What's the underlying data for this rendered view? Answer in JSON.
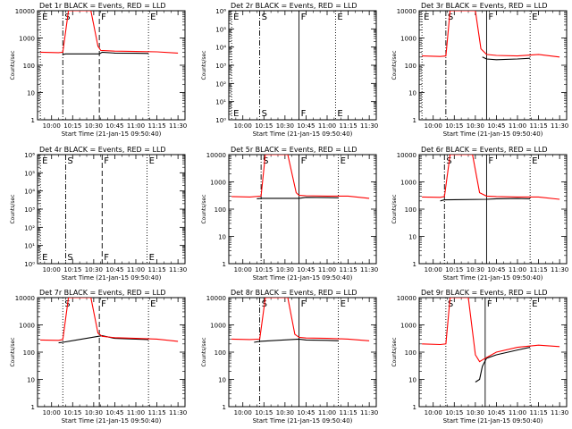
{
  "figure": {
    "xlabel": "Start Time (21-Jan-15 09:50:40)",
    "ylabel": "Counts/sec",
    "xticks": [
      "10:00",
      "10:15",
      "10:30",
      "10:45",
      "11:00",
      "11:15",
      "11:30"
    ]
  },
  "chart_data": [
    {
      "type": "line",
      "title": "Det 1r BLACK = Events, RED = LLD",
      "scale": "log",
      "ylim": [
        1,
        10000
      ],
      "yticklabels": [
        "1",
        "10",
        "100",
        "1000",
        "10000"
      ],
      "markers": [
        {
          "label": "E",
          "t": "09:52",
          "style": "dotted"
        },
        {
          "label": "S",
          "t": "10:08",
          "style": "dashdot"
        },
        {
          "label": "F",
          "t": "10:34",
          "style": "dashed"
        },
        {
          "label": "E",
          "t": "11:09",
          "style": "dotted"
        }
      ],
      "series": [
        {
          "name": "Events",
          "color": "#000000",
          "points": [
            [
              "10:08",
              250
            ],
            [
              "10:10",
              260
            ],
            [
              "10:34",
              260
            ],
            [
              "10:36",
              300
            ],
            [
              "10:45",
              280
            ],
            [
              "11:00",
              275
            ],
            [
              "11:09",
              270
            ]
          ]
        },
        {
          "name": "LLD",
          "color": "#ff0000",
          "points": [
            [
              "09:52",
              300
            ],
            [
              "10:05",
              290
            ],
            [
              "10:08",
              300
            ],
            [
              "10:12",
              10000
            ],
            [
              "10:28",
              10000
            ],
            [
              "10:33",
              500
            ],
            [
              "10:35",
              350
            ],
            [
              "10:45",
              330
            ],
            [
              "11:00",
              320
            ],
            [
              "11:15",
              310
            ],
            [
              "11:30",
              280
            ]
          ]
        }
      ]
    },
    {
      "type": "line",
      "title": "Det 2r BLACK = Events, RED = LLD",
      "scale": "log",
      "ylim": [
        1,
        1000000
      ],
      "yticklabels": [
        "10⁰",
        "10¹",
        "10²",
        "10³",
        "10⁴",
        "10⁵",
        "10⁶"
      ],
      "markers": [
        {
          "label": "E",
          "t": "09:52",
          "style": "dotted"
        },
        {
          "label": "S",
          "t": "10:12",
          "style": "dashdot"
        },
        {
          "label": "F",
          "t": "10:40",
          "style": "solid"
        },
        {
          "label": "E",
          "t": "11:06",
          "style": "dotted"
        }
      ],
      "series": []
    },
    {
      "type": "line",
      "title": "Det 3r BLACK = Events, RED = LLD",
      "scale": "log",
      "ylim": [
        1,
        10000
      ],
      "yticklabels": [
        "1",
        "10",
        "100",
        "1000",
        "10000"
      ],
      "markers": [
        {
          "label": "E",
          "t": "09:52",
          "style": "dotted"
        },
        {
          "label": "S",
          "t": "10:09",
          "style": "dashdot"
        },
        {
          "label": "F",
          "t": "10:38",
          "style": "solid"
        },
        {
          "label": "E",
          "t": "11:09",
          "style": "dotted"
        }
      ],
      "series": [
        {
          "name": "Events",
          "color": "#000000",
          "points": [
            [
              "10:35",
              200
            ],
            [
              "10:38",
              170
            ],
            [
              "10:45",
              160
            ],
            [
              "11:00",
              170
            ],
            [
              "11:09",
              180
            ]
          ]
        },
        {
          "name": "LLD",
          "color": "#ff0000",
          "points": [
            [
              "09:52",
              220
            ],
            [
              "10:05",
              210
            ],
            [
              "10:09",
              220
            ],
            [
              "10:12",
              10000
            ],
            [
              "10:30",
              10000
            ],
            [
              "10:34",
              400
            ],
            [
              "10:38",
              250
            ],
            [
              "10:45",
              230
            ],
            [
              "11:00",
              220
            ],
            [
              "11:15",
              250
            ],
            [
              "11:30",
              200
            ]
          ]
        }
      ]
    },
    {
      "type": "line",
      "title": "Det 4r BLACK = Events, RED = LLD",
      "scale": "log",
      "ylim": [
        1,
        1000000
      ],
      "yticklabels": [
        "10⁰",
        "10¹",
        "10²",
        "10³",
        "10⁴",
        "10⁵",
        "10⁶"
      ],
      "markers": [
        {
          "label": "E",
          "t": "09:52",
          "style": "dotted"
        },
        {
          "label": "S",
          "t": "10:10",
          "style": "dashdot"
        },
        {
          "label": "F",
          "t": "10:36",
          "style": "dashed"
        },
        {
          "label": "E",
          "t": "11:08",
          "style": "dotted"
        }
      ],
      "series": []
    },
    {
      "type": "line",
      "title": "Det 5r BLACK = Events, RED = LLD",
      "scale": "log",
      "ylim": [
        1,
        10000
      ],
      "yticklabels": [
        "1",
        "10",
        "100",
        "1000",
        "10000"
      ],
      "markers": [
        {
          "label": "S",
          "t": "10:13",
          "style": "dashdot"
        },
        {
          "label": "F",
          "t": "10:40",
          "style": "solid"
        },
        {
          "label": "E",
          "t": "11:08",
          "style": "dotted"
        }
      ],
      "series": [
        {
          "name": "Events",
          "color": "#000000",
          "points": [
            [
              "10:10",
              240
            ],
            [
              "10:13",
              250
            ],
            [
              "10:40",
              250
            ],
            [
              "10:45",
              270
            ],
            [
              "11:00",
              265
            ],
            [
              "11:08",
              260
            ]
          ]
        },
        {
          "name": "LLD",
          "color": "#ff0000",
          "points": [
            [
              "09:52",
              290
            ],
            [
              "10:05",
              280
            ],
            [
              "10:13",
              300
            ],
            [
              "10:16",
              10000
            ],
            [
              "10:32",
              10000
            ],
            [
              "10:38",
              400
            ],
            [
              "10:40",
              320
            ],
            [
              "10:45",
              310
            ],
            [
              "11:00",
              300
            ],
            [
              "11:15",
              300
            ],
            [
              "11:30",
              250
            ]
          ]
        }
      ]
    },
    {
      "type": "line",
      "title": "Det 6r BLACK = Events, RED = LLD",
      "scale": "log",
      "ylim": [
        1,
        10000
      ],
      "yticklabels": [
        "1",
        "10",
        "100",
        "1000",
        "10000"
      ],
      "markers": [
        {
          "label": "S",
          "t": "10:08",
          "style": "dashdot"
        },
        {
          "label": "F",
          "t": "10:38",
          "style": "solid"
        },
        {
          "label": "E",
          "t": "11:09",
          "style": "dotted"
        }
      ],
      "series": [
        {
          "name": "Events",
          "color": "#000000",
          "points": [
            [
              "10:05",
              200
            ],
            [
              "10:08",
              220
            ],
            [
              "10:38",
              230
            ],
            [
              "10:45",
              240
            ],
            [
              "11:00",
              245
            ],
            [
              "11:09",
              240
            ]
          ]
        },
        {
          "name": "LLD",
          "color": "#ff0000",
          "points": [
            [
              "09:52",
              280
            ],
            [
              "10:05",
              270
            ],
            [
              "10:08",
              290
            ],
            [
              "10:12",
              10000
            ],
            [
              "10:28",
              10000
            ],
            [
              "10:33",
              400
            ],
            [
              "10:38",
              300
            ],
            [
              "10:45",
              290
            ],
            [
              "11:00",
              280
            ],
            [
              "11:15",
              280
            ],
            [
              "11:30",
              230
            ]
          ]
        }
      ]
    },
    {
      "type": "line",
      "title": "Det 7r BLACK = Events, RED = LLD",
      "scale": "log",
      "ylim": [
        1,
        10000
      ],
      "yticklabels": [
        "1",
        "10",
        "100",
        "1000",
        "10000"
      ],
      "markers": [
        {
          "label": "S",
          "t": "10:08",
          "style": "dotted"
        },
        {
          "label": "F",
          "t": "10:34",
          "style": "dashed"
        },
        {
          "label": "E",
          "t": "11:09",
          "style": "dotted"
        }
      ],
      "series": [
        {
          "name": "Events",
          "color": "#000000",
          "points": [
            [
              "10:05",
              220
            ],
            [
              "10:08",
              230
            ],
            [
              "10:36",
              400
            ],
            [
              "10:45",
              320
            ],
            [
              "11:00",
              300
            ],
            [
              "11:09",
              290
            ]
          ]
        },
        {
          "name": "LLD",
          "color": "#ff0000",
          "points": [
            [
              "09:52",
              280
            ],
            [
              "10:05",
              270
            ],
            [
              "10:08",
              290
            ],
            [
              "10:12",
              10000
            ],
            [
              "10:28",
              10000
            ],
            [
              "10:33",
              500
            ],
            [
              "10:36",
              380
            ],
            [
              "10:45",
              340
            ],
            [
              "11:00",
              320
            ],
            [
              "11:15",
              300
            ],
            [
              "11:30",
              250
            ]
          ]
        }
      ]
    },
    {
      "type": "line",
      "title": "Det 8r BLACK = Events, RED = LLD",
      "scale": "log",
      "ylim": [
        1,
        10000
      ],
      "yticklabels": [
        "1",
        "10",
        "100",
        "1000",
        "10000"
      ],
      "markers": [
        {
          "label": "S",
          "t": "10:12",
          "style": "dashdot"
        },
        {
          "label": "F",
          "t": "10:40",
          "style": "solid"
        },
        {
          "label": "E",
          "t": "11:08",
          "style": "dotted"
        }
      ],
      "series": [
        {
          "name": "Events",
          "color": "#000000",
          "points": [
            [
              "10:08",
              230
            ],
            [
              "10:12",
              250
            ],
            [
              "10:40",
              300
            ],
            [
              "10:45",
              280
            ],
            [
              "11:00",
              270
            ],
            [
              "11:08",
              260
            ]
          ]
        },
        {
          "name": "LLD",
          "color": "#ff0000",
          "points": [
            [
              "09:52",
              300
            ],
            [
              "10:05",
              290
            ],
            [
              "10:12",
              300
            ],
            [
              "10:16",
              10000
            ],
            [
              "10:32",
              10000
            ],
            [
              "10:37",
              450
            ],
            [
              "10:40",
              350
            ],
            [
              "10:45",
              330
            ],
            [
              "11:00",
              320
            ],
            [
              "11:15",
              300
            ],
            [
              "11:30",
              260
            ]
          ]
        }
      ]
    },
    {
      "type": "line",
      "title": "Det 9r BLACK = Events, RED = LLD",
      "scale": "log",
      "ylim": [
        1,
        10000
      ],
      "yticklabels": [
        "1",
        "10",
        "100",
        "1000",
        "10000"
      ],
      "markers": [
        {
          "label": "S",
          "t": "10:09",
          "style": "dotted"
        },
        {
          "label": "F",
          "t": "10:37",
          "style": "solid"
        },
        {
          "label": "E",
          "t": "11:09",
          "style": "dotted"
        }
      ],
      "series": [
        {
          "name": "Events",
          "color": "#000000",
          "points": [
            [
              "10:30",
              8
            ],
            [
              "10:33",
              10
            ],
            [
              "10:35",
              30
            ],
            [
              "10:38",
              60
            ],
            [
              "10:45",
              80
            ],
            [
              "11:00",
              120
            ],
            [
              "11:09",
              150
            ]
          ]
        },
        {
          "name": "LLD",
          "color": "#ff0000",
          "points": [
            [
              "09:52",
              200
            ],
            [
              "10:05",
              190
            ],
            [
              "10:09",
              200
            ],
            [
              "10:12",
              10000
            ],
            [
              "10:25",
              10000
            ],
            [
              "10:30",
              80
            ],
            [
              "10:33",
              45
            ],
            [
              "10:37",
              60
            ],
            [
              "10:45",
              100
            ],
            [
              "11:00",
              150
            ],
            [
              "11:15",
              180
            ],
            [
              "11:30",
              160
            ]
          ]
        }
      ]
    }
  ]
}
